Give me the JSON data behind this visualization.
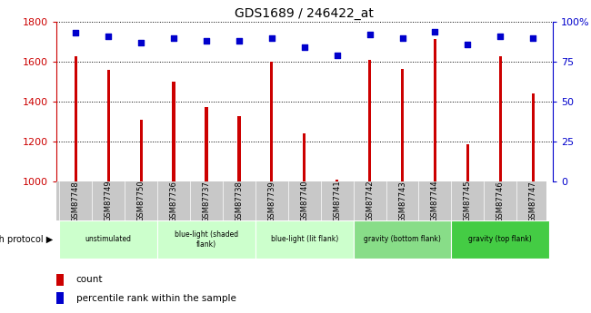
{
  "title": "GDS1689 / 246422_at",
  "samples": [
    "GSM87748",
    "GSM87749",
    "GSM87750",
    "GSM87736",
    "GSM87737",
    "GSM87738",
    "GSM87739",
    "GSM87740",
    "GSM87741",
    "GSM87742",
    "GSM87743",
    "GSM87744",
    "GSM87745",
    "GSM87746",
    "GSM87747"
  ],
  "counts": [
    1630,
    1560,
    1310,
    1500,
    1375,
    1330,
    1600,
    1240,
    1010,
    1610,
    1565,
    1715,
    1185,
    1630,
    1440
  ],
  "percentile_ranks": [
    93,
    91,
    87,
    90,
    88,
    88,
    90,
    84,
    79,
    92,
    90,
    94,
    86,
    91,
    90
  ],
  "ylim_left": [
    1000,
    1800
  ],
  "ylim_right": [
    0,
    100
  ],
  "yticks_left": [
    1000,
    1200,
    1400,
    1600,
    1800
  ],
  "yticks_right": [
    0,
    25,
    50,
    75,
    100
  ],
  "bar_color": "#cc0000",
  "dot_color": "#0000cc",
  "groups": [
    {
      "label": "unstimulated",
      "start": 0,
      "end": 3,
      "color": "#ccffcc"
    },
    {
      "label": "blue-light (shaded\nflank)",
      "start": 3,
      "end": 6,
      "color": "#ccffcc"
    },
    {
      "label": "blue-light (lit flank)",
      "start": 6,
      "end": 9,
      "color": "#ccffcc"
    },
    {
      "label": "gravity (bottom flank)",
      "start": 9,
      "end": 12,
      "color": "#88dd88"
    },
    {
      "label": "gravity (top flank)",
      "start": 12,
      "end": 15,
      "color": "#44cc44"
    }
  ],
  "sample_bg_color": "#c8c8c8",
  "legend_count_color": "#cc0000",
  "legend_pct_color": "#0000cc",
  "right_axis_color": "#0000cc",
  "left_axis_color": "#cc0000",
  "bar_width": 0.09,
  "dot_size": 25
}
